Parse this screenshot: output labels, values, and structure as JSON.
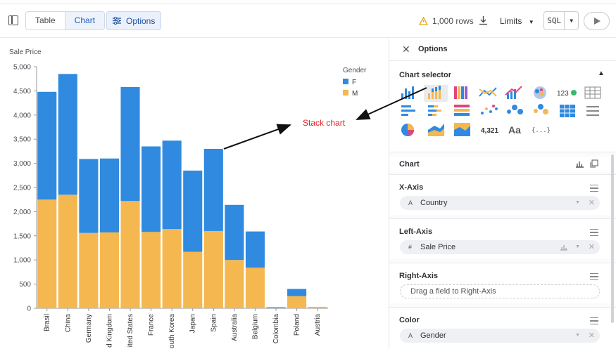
{
  "toolbar": {
    "views": [
      "Table",
      "Chart"
    ],
    "active_view": "Chart",
    "options_label": "Options",
    "rows_label": "1,000 rows",
    "limits_label": "Limits",
    "sql_label": "SQL"
  },
  "panel": {
    "title": "Options",
    "selector_title": "Chart selector",
    "single_value_label": "4,321",
    "text_label": "Aa",
    "json_label": "{...}",
    "chart_section": "Chart",
    "x_axis": {
      "title": "X-Axis",
      "field": "Country",
      "type_icon": "A"
    },
    "left_axis": {
      "title": "Left-Axis",
      "field": "Sale Price",
      "type_icon": "#"
    },
    "right_axis": {
      "title": "Right-Axis",
      "placeholder": "Drag a field to Right-Axis"
    },
    "color": {
      "title": "Color",
      "field": "Gender",
      "type_icon": "A"
    }
  },
  "annotation": {
    "text": "Stack chart",
    "color": "#e02424"
  },
  "colors": {
    "F": "#2f8ae0",
    "M": "#f5b74f",
    "accent": "#1f5fbf"
  },
  "chart_data": {
    "type": "bar",
    "stacked": true,
    "ylabel": "Sale Price",
    "legend_title": "Gender",
    "legend_position": "top-right",
    "ylim": [
      0,
      5000
    ],
    "yticks": [
      "0",
      "500",
      "1,000",
      "1,500",
      "2,000",
      "2,500",
      "3,000",
      "3,500",
      "4,000",
      "4,500",
      "5,000"
    ],
    "categories": [
      "Brasil",
      "China",
      "Germany",
      "d Kingdom",
      "ited States",
      "France",
      "outh Korea",
      "Japan",
      "Spain",
      "Australia",
      "Belgium",
      "Colombia",
      "Poland",
      "Austria"
    ],
    "series": [
      {
        "name": "M",
        "values": [
          2250,
          2350,
          1560,
          1570,
          2220,
          1580,
          1640,
          1170,
          1600,
          1000,
          840,
          0,
          250,
          30
        ]
      },
      {
        "name": "F",
        "values": [
          2230,
          2500,
          1530,
          1530,
          2360,
          1770,
          1830,
          1680,
          1700,
          1140,
          750,
          20,
          150,
          0
        ]
      }
    ]
  }
}
